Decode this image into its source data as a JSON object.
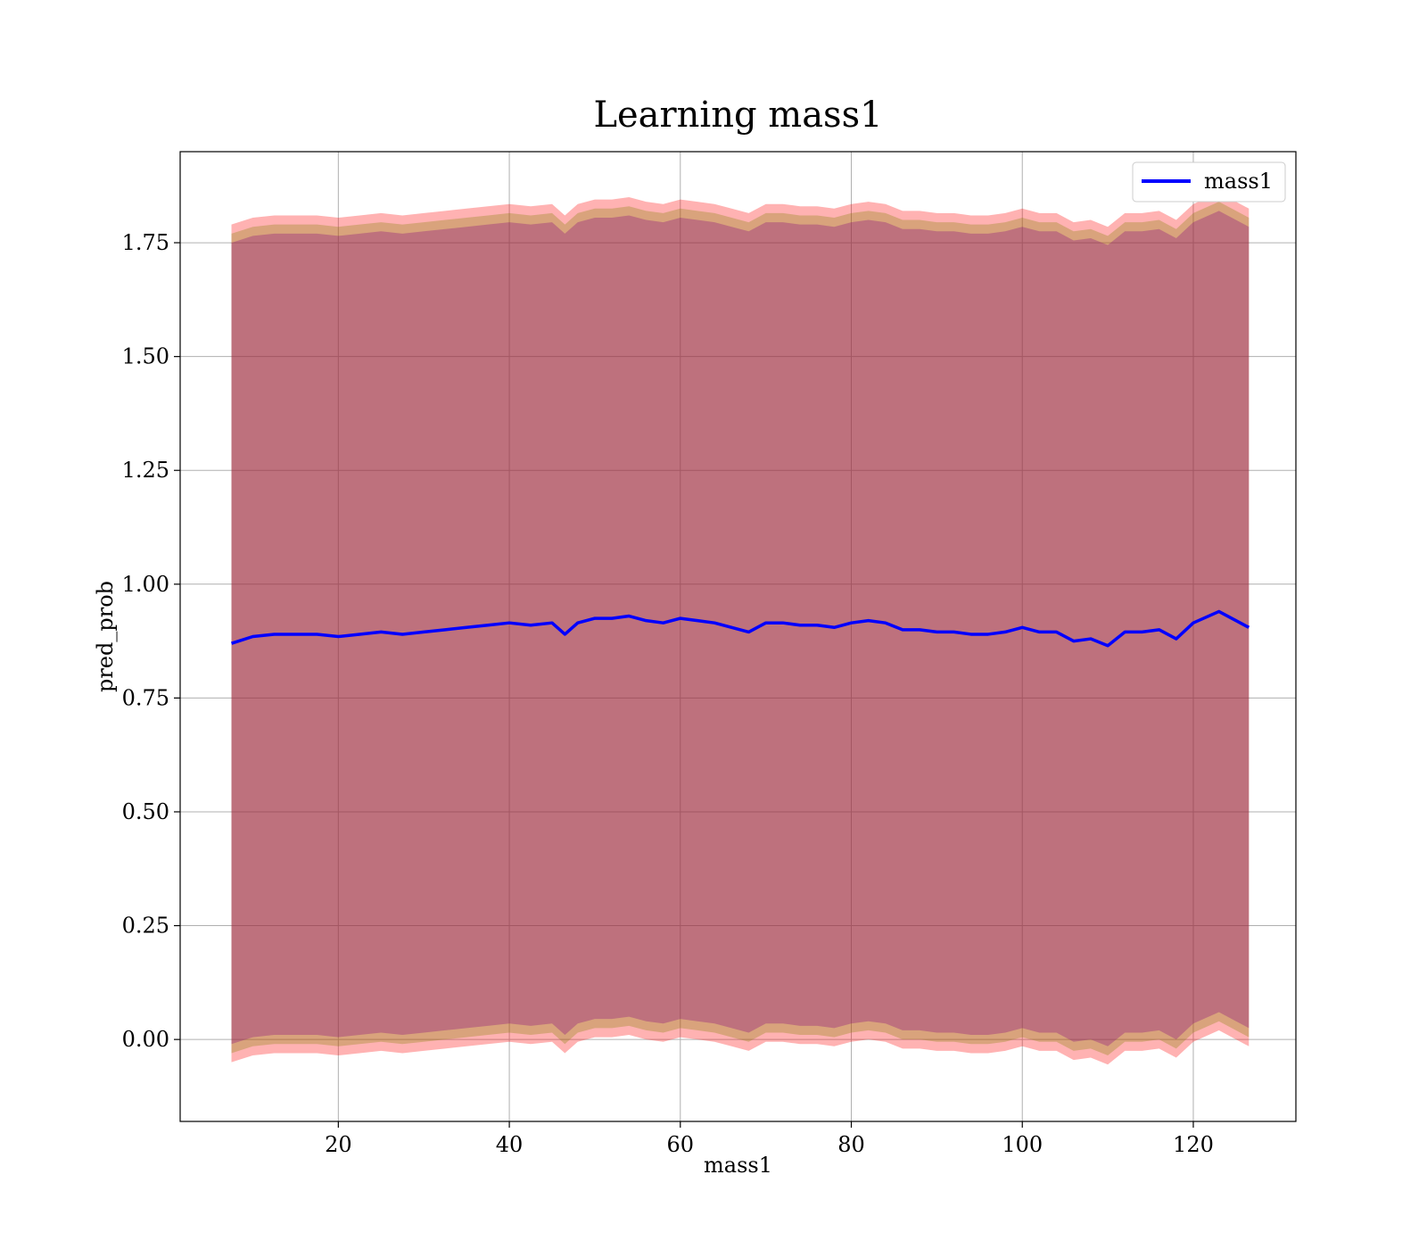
{
  "chart_data": {
    "type": "line",
    "title": "Learning mass1",
    "xlabel": "mass1",
    "ylabel": "pred_prob",
    "xlim": [
      1.5,
      132
    ],
    "ylim": [
      -0.18,
      1.95
    ],
    "grid": true,
    "legend_position": "top-right",
    "x_ticks": [
      20,
      40,
      60,
      80,
      100,
      120
    ],
    "x_tick_labels": [
      "20",
      "40",
      "60",
      "80",
      "100",
      "120"
    ],
    "y_ticks": [
      0.0,
      0.25,
      0.5,
      0.75,
      1.0,
      1.25,
      1.5,
      1.75
    ],
    "y_tick_labels": [
      "0.00",
      "0.25",
      "0.50",
      "0.75",
      "1.00",
      "1.25",
      "1.50",
      "1.75"
    ],
    "colors": {
      "line": "#0000ff",
      "band_outer": "#ff0000",
      "band_mid": "#808000",
      "band_inner": "#800080",
      "grid": "#b0b0b0"
    },
    "series": [
      {
        "name": "mass1",
        "x": [
          7.5,
          10,
          12.5,
          15,
          17.5,
          20,
          22.5,
          25,
          27.5,
          30,
          32.5,
          35,
          37.5,
          40,
          42.5,
          45,
          46.5,
          48,
          50,
          52,
          54,
          56,
          58,
          60,
          62,
          64,
          66,
          68,
          70,
          72,
          74,
          76,
          78,
          80,
          82,
          84,
          86,
          88,
          90,
          92,
          94,
          96,
          98,
          100,
          102,
          104,
          106,
          108,
          110,
          112,
          114,
          116,
          118,
          120,
          123,
          126.5
        ],
        "y": [
          0.87,
          0.885,
          0.89,
          0.89,
          0.89,
          0.885,
          0.89,
          0.895,
          0.89,
          0.895,
          0.9,
          0.905,
          0.91,
          0.915,
          0.91,
          0.915,
          0.89,
          0.915,
          0.925,
          0.925,
          0.93,
          0.92,
          0.915,
          0.925,
          0.92,
          0.915,
          0.905,
          0.895,
          0.915,
          0.915,
          0.91,
          0.91,
          0.905,
          0.915,
          0.92,
          0.915,
          0.9,
          0.9,
          0.895,
          0.895,
          0.89,
          0.89,
          0.895,
          0.905,
          0.895,
          0.895,
          0.875,
          0.88,
          0.865,
          0.895,
          0.895,
          0.9,
          0.88,
          0.915,
          0.94,
          0.905
        ]
      }
    ],
    "bands": [
      {
        "color_key": "band_outer",
        "offset": 0.92
      },
      {
        "color_key": "band_mid",
        "offset": 0.9
      },
      {
        "color_key": "band_inner",
        "offset": 0.88
      }
    ]
  }
}
